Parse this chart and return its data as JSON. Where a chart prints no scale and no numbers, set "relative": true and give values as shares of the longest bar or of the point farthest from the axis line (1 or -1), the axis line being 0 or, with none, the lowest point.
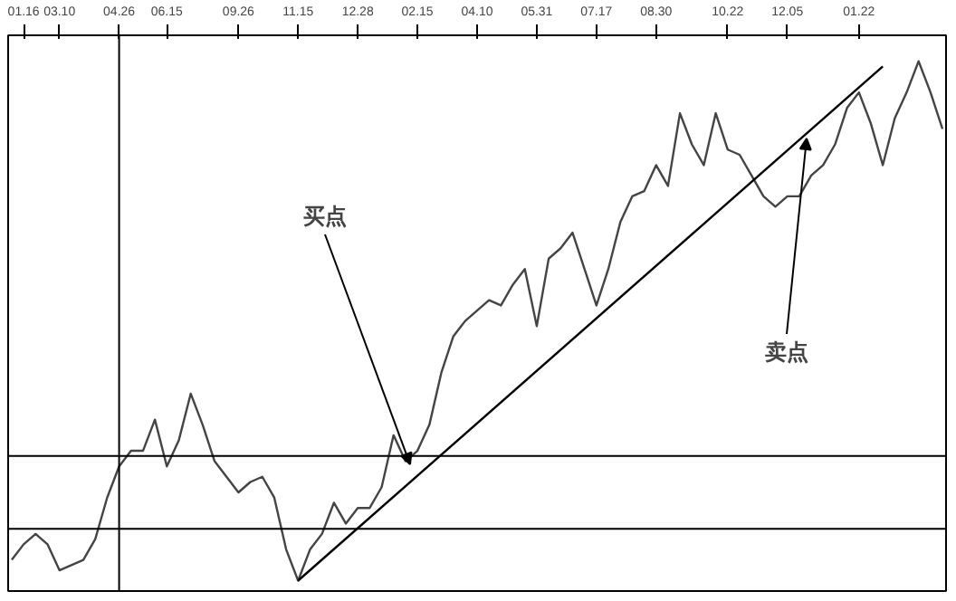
{
  "chart_data": {
    "type": "line",
    "relative": true,
    "categories": [
      null,
      "01.16",
      null,
      null,
      "03.10",
      null,
      null,
      null,
      null,
      "04.26",
      null,
      null,
      null,
      "06.15",
      null,
      null,
      null,
      null,
      null,
      "09.26",
      null,
      null,
      null,
      null,
      "11.15",
      null,
      null,
      null,
      null,
      "12.28",
      null,
      null,
      null,
      null,
      "02.15",
      null,
      null,
      null,
      null,
      "04.10",
      null,
      null,
      null,
      null,
      "05.31",
      null,
      null,
      null,
      null,
      "07.17",
      null,
      null,
      null,
      null,
      "08.30",
      null,
      null,
      null,
      null,
      null,
      "10.22",
      null,
      null,
      null,
      null,
      "12.05",
      null,
      null,
      null,
      null,
      null,
      "01.22",
      null,
      null,
      null,
      null,
      null,
      null,
      null
    ],
    "series": [
      {
        "color": "#444444",
        "values": [
          0.04,
          0.07,
          0.09,
          0.07,
          0.02,
          0.03,
          0.04,
          0.08,
          0.16,
          0.22,
          0.25,
          0.25,
          0.31,
          0.22,
          0.27,
          0.36,
          0.3,
          0.23,
          0.2,
          0.17,
          0.19,
          0.2,
          0.16,
          0.06,
          0,
          0.06,
          0.09,
          0.15,
          0.11,
          0.14,
          0.14,
          0.18,
          0.28,
          0.23,
          0.25,
          0.3,
          0.4,
          0.47,
          0.5,
          0.52,
          0.54,
          0.53,
          0.57,
          0.6,
          0.49,
          0.62,
          0.64,
          0.67,
          0.6,
          0.53,
          0.6,
          0.69,
          0.74,
          0.75,
          0.8,
          0.76,
          0.9,
          0.84,
          0.8,
          0.9,
          0.83,
          0.82,
          0.78,
          0.74,
          0.72,
          0.74,
          0.74,
          0.78,
          0.8,
          0.84,
          0.91,
          0.94,
          0.88,
          0.8,
          0.89,
          0.94,
          1,
          0.94,
          0.87
        ]
      },
      {
        "color": "#000000",
        "values": [
          null,
          null,
          null,
          null,
          null,
          null,
          null,
          null,
          null,
          null,
          null,
          null,
          null,
          null,
          null,
          null,
          null,
          null,
          null,
          null,
          null,
          null,
          null,
          null,
          0,
          null,
          null,
          null,
          null,
          null,
          null,
          null,
          null,
          null,
          null,
          null,
          null,
          null,
          null,
          null,
          null,
          null,
          null,
          null,
          null,
          null,
          null,
          null,
          null,
          null,
          null,
          null,
          null,
          null,
          null,
          null,
          null,
          null,
          null,
          null,
          null,
          null,
          null,
          null,
          null,
          null,
          null,
          null,
          null,
          null,
          null,
          null,
          null,
          0.99,
          null,
          null,
          null,
          null,
          null
        ]
      }
    ],
    "ref_lines": [
      {
        "axis": "y",
        "value": 0.24,
        "color": "#000000"
      },
      {
        "axis": "y",
        "value": 0.1,
        "color": "#000000"
      },
      {
        "axis": "x",
        "value": "04.26",
        "color": "#000000"
      }
    ],
    "annotations": [
      "买点",
      "卖点"
    ]
  }
}
